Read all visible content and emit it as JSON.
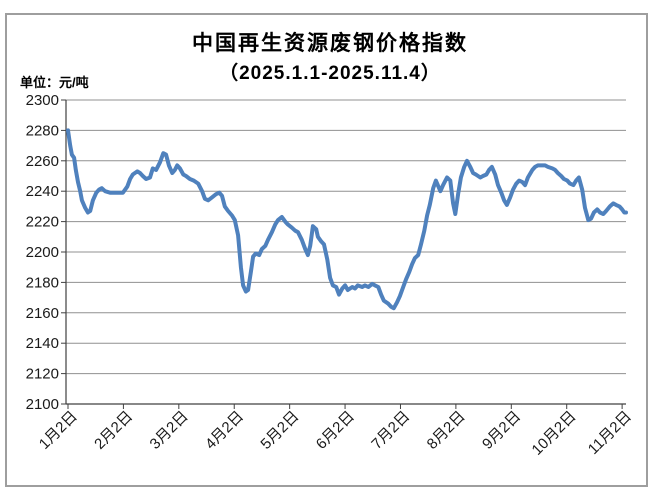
{
  "header": {
    "title": "中国再生资源废钢价格指数",
    "subtitle": "（2025.1.1-2025.11.4）",
    "unit_label": "单位：元/吨"
  },
  "colors": {
    "line": "#4F81BD",
    "gridline": "#909090",
    "axis": "#404040",
    "frame_border": "#9e9e9e",
    "text": "#1a1a1a",
    "background": "#ffffff"
  },
  "chart_data": {
    "type": "line",
    "title": "中国再生资源废钢价格指数（2025.1.1-2025.11.4）",
    "ylabel": "元/吨",
    "ylim": [
      2100,
      2300
    ],
    "ytick_step": 20,
    "xtick_labels": [
      "1月2日",
      "2月2日",
      "3月2日",
      "4月2日",
      "5月2日",
      "6月2日",
      "7月2日",
      "8月2日",
      "9月2日",
      "10月2日",
      "11月2日"
    ],
    "x_unit_note": "x = months after 1月2日 (tick spacing = 1 month)",
    "grid": true,
    "legend_position": "none",
    "line_color": "#4F81BD",
    "series": [
      {
        "name": "废钢价格指数",
        "points": [
          [
            0,
            2280
          ],
          [
            0.04,
            2270
          ],
          [
            0.07,
            2264
          ],
          [
            0.11,
            2262
          ],
          [
            0.14,
            2254
          ],
          [
            0.18,
            2246
          ],
          [
            0.22,
            2240
          ],
          [
            0.25,
            2234
          ],
          [
            0.31,
            2229
          ],
          [
            0.36,
            2226
          ],
          [
            0.4,
            2227
          ],
          [
            0.45,
            2234
          ],
          [
            0.51,
            2239
          ],
          [
            0.56,
            2241
          ],
          [
            0.61,
            2242
          ],
          [
            0.67,
            2240
          ],
          [
            0.76,
            2239
          ],
          [
            0.85,
            2239
          ],
          [
            0.94,
            2239
          ],
          [
            0.99,
            2239
          ],
          [
            1.07,
            2243
          ],
          [
            1.12,
            2248
          ],
          [
            1.17,
            2251
          ],
          [
            1.25,
            2253
          ],
          [
            1.3,
            2252
          ],
          [
            1.35,
            2250
          ],
          [
            1.41,
            2248
          ],
          [
            1.48,
            2249
          ],
          [
            1.53,
            2255
          ],
          [
            1.59,
            2254
          ],
          [
            1.66,
            2259
          ],
          [
            1.72,
            2265
          ],
          [
            1.77,
            2264
          ],
          [
            1.82,
            2257
          ],
          [
            1.88,
            2252
          ],
          [
            1.93,
            2254
          ],
          [
            1.97,
            2257
          ],
          [
            2.02,
            2255
          ],
          [
            2.08,
            2251
          ],
          [
            2.13,
            2250
          ],
          [
            2.2,
            2248
          ],
          [
            2.27,
            2247
          ],
          [
            2.35,
            2245
          ],
          [
            2.42,
            2240
          ],
          [
            2.47,
            2235
          ],
          [
            2.53,
            2234
          ],
          [
            2.6,
            2236
          ],
          [
            2.67,
            2238
          ],
          [
            2.73,
            2239
          ],
          [
            2.78,
            2237
          ],
          [
            2.83,
            2230
          ],
          [
            2.89,
            2227
          ],
          [
            2.96,
            2224
          ],
          [
            3.01,
            2221
          ],
          [
            3.07,
            2211
          ],
          [
            3.12,
            2190
          ],
          [
            3.16,
            2178
          ],
          [
            3.21,
            2174
          ],
          [
            3.25,
            2175
          ],
          [
            3.3,
            2187
          ],
          [
            3.34,
            2197
          ],
          [
            3.39,
            2199
          ],
          [
            3.45,
            2198
          ],
          [
            3.5,
            2202
          ],
          [
            3.56,
            2204
          ],
          [
            3.61,
            2208
          ],
          [
            3.68,
            2213
          ],
          [
            3.74,
            2218
          ],
          [
            3.79,
            2221
          ],
          [
            3.86,
            2223
          ],
          [
            3.92,
            2220
          ],
          [
            3.97,
            2218
          ],
          [
            4.04,
            2216
          ],
          [
            4.1,
            2214
          ],
          [
            4.15,
            2213
          ],
          [
            4.22,
            2208
          ],
          [
            4.28,
            2202
          ],
          [
            4.33,
            2198
          ],
          [
            4.37,
            2204
          ],
          [
            4.42,
            2217
          ],
          [
            4.48,
            2215
          ],
          [
            4.51,
            2210
          ],
          [
            4.57,
            2207
          ],
          [
            4.62,
            2205
          ],
          [
            4.68,
            2195
          ],
          [
            4.73,
            2183
          ],
          [
            4.78,
            2178
          ],
          [
            4.84,
            2177
          ],
          [
            4.89,
            2172
          ],
          [
            4.95,
            2176
          ],
          [
            5,
            2178
          ],
          [
            5.05,
            2175
          ],
          [
            5.13,
            2177
          ],
          [
            5.18,
            2176
          ],
          [
            5.23,
            2178
          ],
          [
            5.31,
            2177
          ],
          [
            5.36,
            2178
          ],
          [
            5.42,
            2177
          ],
          [
            5.49,
            2179
          ],
          [
            5.54,
            2178
          ],
          [
            5.6,
            2177
          ],
          [
            5.65,
            2172
          ],
          [
            5.7,
            2168
          ],
          [
            5.78,
            2166
          ],
          [
            5.83,
            2164
          ],
          [
            5.88,
            2163
          ],
          [
            5.94,
            2167
          ],
          [
            5.99,
            2171
          ],
          [
            6.05,
            2177
          ],
          [
            6.1,
            2182
          ],
          [
            6.16,
            2187
          ],
          [
            6.21,
            2192
          ],
          [
            6.26,
            2196
          ],
          [
            6.32,
            2198
          ],
          [
            6.37,
            2205
          ],
          [
            6.43,
            2214
          ],
          [
            6.48,
            2224
          ],
          [
            6.53,
            2231
          ],
          [
            6.59,
            2242
          ],
          [
            6.64,
            2247
          ],
          [
            6.72,
            2240
          ],
          [
            6.77,
            2244
          ],
          [
            6.84,
            2249
          ],
          [
            6.9,
            2247
          ],
          [
            6.95,
            2232
          ],
          [
            6.99,
            2225
          ],
          [
            7.04,
            2238
          ],
          [
            7.09,
            2249
          ],
          [
            7.15,
            2256
          ],
          [
            7.2,
            2260
          ],
          [
            7.26,
            2256
          ],
          [
            7.31,
            2252
          ],
          [
            7.36,
            2251
          ],
          [
            7.44,
            2249
          ],
          [
            7.49,
            2250
          ],
          [
            7.55,
            2251
          ],
          [
            7.6,
            2254
          ],
          [
            7.65,
            2256
          ],
          [
            7.71,
            2251
          ],
          [
            7.76,
            2244
          ],
          [
            7.82,
            2239
          ],
          [
            7.87,
            2234
          ],
          [
            7.92,
            2231
          ],
          [
            7.98,
            2236
          ],
          [
            8.03,
            2241
          ],
          [
            8.09,
            2245
          ],
          [
            8.14,
            2247
          ],
          [
            8.2,
            2246
          ],
          [
            8.25,
            2244
          ],
          [
            8.3,
            2249
          ],
          [
            8.38,
            2254
          ],
          [
            8.43,
            2256
          ],
          [
            8.48,
            2257
          ],
          [
            8.56,
            2257
          ],
          [
            8.61,
            2257
          ],
          [
            8.66,
            2256
          ],
          [
            8.74,
            2255
          ],
          [
            8.79,
            2254
          ],
          [
            8.84,
            2252
          ],
          [
            8.9,
            2250
          ],
          [
            8.95,
            2248
          ],
          [
            9.01,
            2247
          ],
          [
            9.06,
            2245
          ],
          [
            9.12,
            2244
          ],
          [
            9.17,
            2247
          ],
          [
            9.22,
            2249
          ],
          [
            9.28,
            2241
          ],
          [
            9.33,
            2229
          ],
          [
            9.39,
            2221
          ],
          [
            9.44,
            2222
          ],
          [
            9.49,
            2226
          ],
          [
            9.55,
            2228
          ],
          [
            9.6,
            2226
          ],
          [
            9.66,
            2225
          ],
          [
            9.71,
            2227
          ],
          [
            9.78,
            2230
          ],
          [
            9.84,
            2232
          ],
          [
            9.89,
            2231
          ],
          [
            9.95,
            2230
          ],
          [
            10,
            2228
          ],
          [
            10.04,
            2226
          ],
          [
            10.07,
            2226
          ]
        ]
      }
    ]
  }
}
